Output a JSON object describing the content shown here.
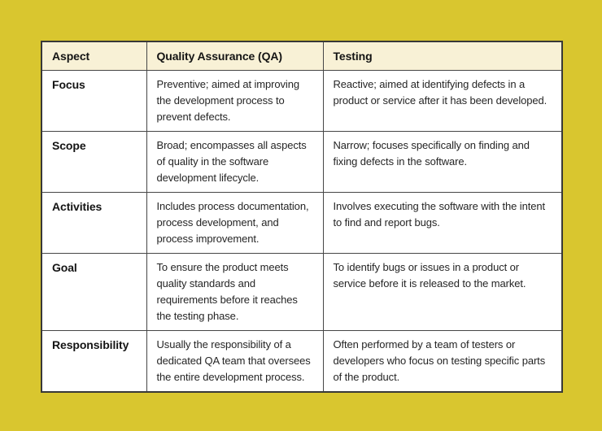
{
  "page": {
    "canvas_bg": "#d9c62f",
    "header_bg": "#f8f1d6",
    "cell_bg": "#ffffff",
    "border_color": "#424242",
    "text_color": "#1e1e1e"
  },
  "table": {
    "headers": {
      "aspect": "Aspect",
      "qa": "Quality Assurance (QA)",
      "testing": "Testing"
    },
    "rows": [
      {
        "aspect": "Focus",
        "qa": "Preventive; aimed at improving\nthe development process to\nprevent defects.",
        "testing": "Reactive; aimed at identifying defects in a\nproduct or service after it has been developed."
      },
      {
        "aspect": "Scope",
        "qa": "Broad; encompasses all aspects\nof quality in the software\ndevelopment lifecycle.",
        "testing": "Narrow; focuses specifically on finding and\nfixing defects in the software."
      },
      {
        "aspect": "Activities",
        "qa": "Includes process documentation,\nprocess development, and\nprocess improvement.",
        "testing": "Involves executing the software with the intent\nto find and report bugs."
      },
      {
        "aspect": "Goal",
        "qa": "To ensure the product meets\nquality standards and\nrequirements before it reaches\nthe testing phase.",
        "testing": "To identify bugs or issues in a product or\nservice before it is released to the market."
      },
      {
        "aspect": "Responsibility",
        "qa": "Usually the responsibility of a\ndedicated QA team that oversees\nthe entire development process.",
        "testing": "Often performed by a team of testers or\ndevelopers who focus on testing specific parts\nof the product."
      }
    ]
  }
}
